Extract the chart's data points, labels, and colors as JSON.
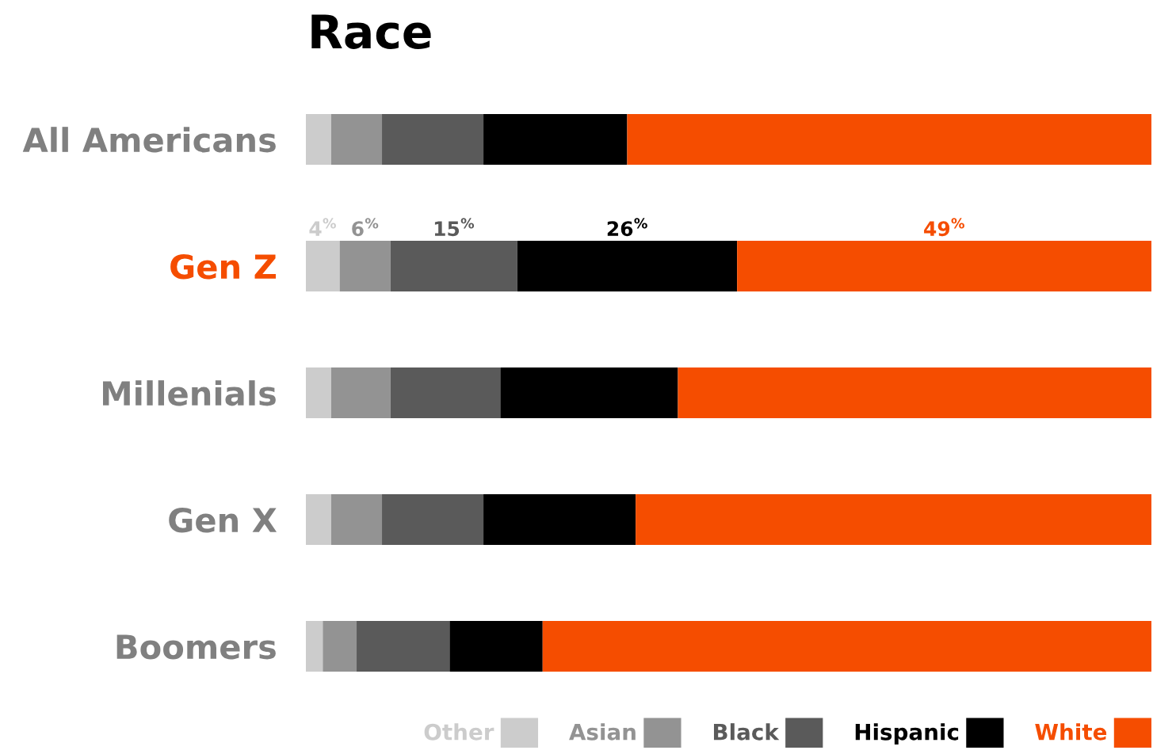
{
  "chart_data": {
    "type": "bar",
    "title": "Race",
    "orientation": "horizontal",
    "stacked": true,
    "categories": [
      "All Americans",
      "Gen Z",
      "Millenials",
      "Gen X",
      "Boomers"
    ],
    "xlim": [
      0,
      100
    ],
    "tick_labels": "y",
    "grid": false,
    "legend": "bottom",
    "series": [
      {
        "name": "Other",
        "color": "#cccccc",
        "values": [
          3,
          4,
          3,
          3,
          2
        ],
        "value_labels": [
          null,
          "4$^{%}$",
          null,
          null,
          null
        ]
      },
      {
        "name": "Asian",
        "color": "#939393",
        "values": [
          6,
          6,
          7,
          6,
          4
        ],
        "value_labels": [
          null,
          "6$^{%}$",
          null,
          null,
          null
        ]
      },
      {
        "name": "Black",
        "color": "#5a5a5a",
        "values": [
          12,
          15,
          13,
          12,
          11
        ],
        "value_labels": [
          null,
          "15$^{%}$",
          null,
          null,
          null
        ]
      },
      {
        "name": "Hispanic",
        "color": "#000000",
        "values": [
          17,
          26,
          21,
          18,
          11
        ],
        "value_labels": [
          null,
          "26$^{%}$",
          null,
          null,
          null
        ]
      },
      {
        "name": "White",
        "color": "#f54d00",
        "values": [
          62,
          49,
          56,
          61,
          72
        ],
        "value_labels": [
          null,
          "49$^{%}$",
          null,
          null,
          null
        ]
      }
    ]
  }
}
